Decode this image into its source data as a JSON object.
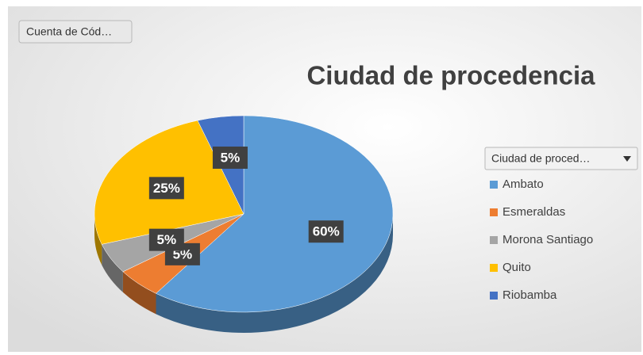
{
  "chart_data": {
    "type": "pie",
    "title": "Ciudad de procedencia",
    "field_button": "Cuenta de Cód…",
    "legend_title": "Ciudad de proced…",
    "categories": [
      "Ambato",
      "Esmeraldas",
      "Morona Santiago",
      "Quito",
      "Riobamba"
    ],
    "values": [
      60,
      5,
      5,
      25,
      5
    ],
    "value_labels": [
      "60%",
      "5%",
      "5%",
      "25%",
      "5%"
    ],
    "colors": [
      "#5b9bd5",
      "#ed7d31",
      "#a5a5a5",
      "#ffc000",
      "#4472c4"
    ],
    "legend": "right"
  }
}
